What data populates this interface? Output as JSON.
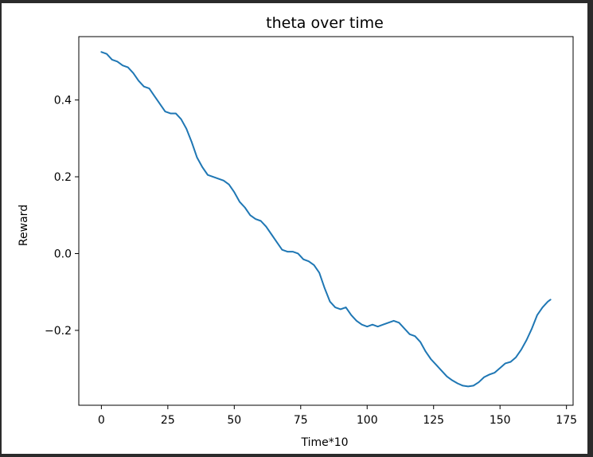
{
  "chart_data": {
    "type": "line",
    "title": "theta over time",
    "xlabel": "Time*10",
    "ylabel": "Reward",
    "xlim": [
      -8.5,
      177.5
    ],
    "ylim": [
      -0.395,
      0.565
    ],
    "xticks": [
      0,
      25,
      50,
      75,
      100,
      125,
      150,
      175
    ],
    "xtick_labels": [
      "0",
      "25",
      "50",
      "75",
      "100",
      "125",
      "150",
      "175"
    ],
    "yticks": [
      -0.2,
      0.0,
      0.2,
      0.4
    ],
    "ytick_labels": [
      "−0.2",
      "0.0",
      "0.2",
      "0.4"
    ],
    "grid": false,
    "series": [
      {
        "color": "#1f77b4",
        "x": [
          0,
          2,
          4,
          6,
          8,
          10,
          12,
          14,
          16,
          18,
          20,
          22,
          24,
          26,
          28,
          30,
          32,
          34,
          36,
          38,
          40,
          42,
          44,
          46,
          48,
          50,
          52,
          54,
          56,
          58,
          60,
          62,
          64,
          66,
          68,
          70,
          72,
          74,
          76,
          78,
          80,
          82,
          84,
          86,
          88,
          90,
          92,
          94,
          96,
          98,
          100,
          102,
          104,
          106,
          108,
          110,
          112,
          114,
          116,
          118,
          120,
          122,
          124,
          126,
          128,
          130,
          132,
          134,
          136,
          138,
          140,
          142,
          144,
          146,
          148,
          150,
          152,
          154,
          156,
          158,
          160,
          162,
          164,
          166,
          168,
          169
        ],
        "y": [
          0.525,
          0.52,
          0.505,
          0.5,
          0.49,
          0.485,
          0.47,
          0.45,
          0.435,
          0.43,
          0.41,
          0.39,
          0.37,
          0.365,
          0.365,
          0.35,
          0.325,
          0.29,
          0.25,
          0.225,
          0.205,
          0.2,
          0.195,
          0.19,
          0.18,
          0.16,
          0.135,
          0.12,
          0.1,
          0.09,
          0.085,
          0.07,
          0.05,
          0.03,
          0.01,
          0.005,
          0.005,
          0.0,
          -0.015,
          -0.02,
          -0.03,
          -0.05,
          -0.09,
          -0.125,
          -0.14,
          -0.145,
          -0.14,
          -0.16,
          -0.175,
          -0.185,
          -0.19,
          -0.185,
          -0.19,
          -0.185,
          -0.18,
          -0.175,
          -0.18,
          -0.195,
          -0.21,
          -0.215,
          -0.23,
          -0.255,
          -0.275,
          -0.29,
          -0.305,
          -0.32,
          -0.33,
          -0.338,
          -0.344,
          -0.346,
          -0.344,
          -0.335,
          -0.322,
          -0.315,
          -0.31,
          -0.298,
          -0.286,
          -0.282,
          -0.27,
          -0.25,
          -0.225,
          -0.195,
          -0.16,
          -0.14,
          -0.125,
          -0.12
        ]
      }
    ]
  }
}
